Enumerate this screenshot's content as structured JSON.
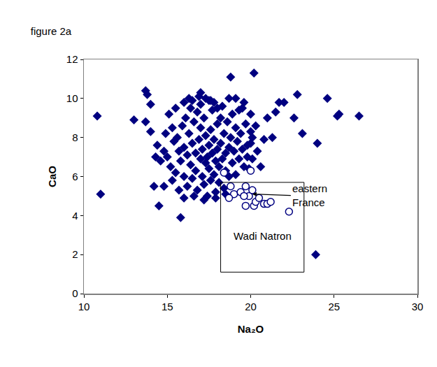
{
  "chart_data": {
    "type": "scatter",
    "title": "figure 2a",
    "x_label": "Na₂O",
    "y_label": "CaO",
    "xlim": [
      10,
      30
    ],
    "xticks": [
      10,
      15,
      20,
      25,
      30
    ],
    "ylim": [
      0,
      12
    ],
    "yticks": [
      0,
      2,
      4,
      6,
      8,
      10,
      12
    ],
    "grid": false,
    "series": [
      {
        "color": "#000080",
        "marker": "diamond",
        "x": [
          10.8,
          11.0,
          13.0,
          13.7,
          13.8,
          14.0,
          13.7,
          14.0,
          14.3,
          14.2,
          14.5,
          14.8,
          15.8,
          15.5,
          15.3,
          16.0,
          16.5,
          17.0,
          17.3,
          17.5,
          17.8,
          18.0,
          18.8,
          19.1,
          20.2,
          20.0,
          19.5,
          20.0,
          19.8,
          21.5,
          21.7,
          22.8,
          22.6,
          23.1,
          24.0,
          24.6,
          25.2,
          25.3,
          26.5,
          23.9,
          22.0,
          15.0,
          15.2,
          15.4,
          15.5,
          15.6,
          15.7,
          15.8,
          15.9,
          16.0,
          16.0,
          16.1,
          16.2,
          16.2,
          16.3,
          16.4,
          16.5,
          16.5,
          16.6,
          16.7,
          16.7,
          16.8,
          16.8,
          16.9,
          17.0,
          17.0,
          17.1,
          17.1,
          17.2,
          17.2,
          17.3,
          17.3,
          17.4,
          17.4,
          17.5,
          17.5,
          17.6,
          17.6,
          17.7,
          17.7,
          17.8,
          17.8,
          17.9,
          17.9,
          18.0,
          18.0,
          18.1,
          18.1,
          18.2,
          18.2,
          18.3,
          18.4,
          18.4,
          18.5,
          18.5,
          18.6,
          18.7,
          18.7,
          18.8,
          18.9,
          18.9,
          19.0,
          19.1,
          19.1,
          19.2,
          19.3,
          19.4,
          19.5,
          19.6,
          19.7,
          19.8,
          19.9,
          20.0,
          20.1,
          20.1,
          15.3,
          14.8,
          14.6,
          14.9,
          15.1,
          14.4,
          16.3,
          16.9,
          17.6,
          18.3,
          19.3,
          20.4,
          20.8,
          21.0,
          16.0,
          16.6,
          17.2,
          17.9,
          18.5,
          15.7,
          16.4,
          17.0,
          19.6,
          18.7,
          20.3,
          21.3,
          20.6
        ],
        "y": [
          9.1,
          5.1,
          8.9,
          10.4,
          10.2,
          9.7,
          8.8,
          8.3,
          7.0,
          5.5,
          4.5,
          5.5,
          3.9,
          9.5,
          8.5,
          9.8,
          9.9,
          10.3,
          10.0,
          9.9,
          9.8,
          9.5,
          11.1,
          10.0,
          11.3,
          9.2,
          9.5,
          8.3,
          7.6,
          9.3,
          9.8,
          10.2,
          9.0,
          8.2,
          7.7,
          10.0,
          9.1,
          9.2,
          9.1,
          2.0,
          9.8,
          7.0,
          6.5,
          7.8,
          6.2,
          8.0,
          7.3,
          6.8,
          8.6,
          7.5,
          6.0,
          9.0,
          7.1,
          5.5,
          8.2,
          6.6,
          7.7,
          5.9,
          8.8,
          7.2,
          6.3,
          9.3,
          5.3,
          7.9,
          6.9,
          8.5,
          6.0,
          7.4,
          9.0,
          5.6,
          6.7,
          8.1,
          7.0,
          5.0,
          7.6,
          6.4,
          8.4,
          5.8,
          7.2,
          9.4,
          6.1,
          7.9,
          6.8,
          5.2,
          7.4,
          8.7,
          6.5,
          5.7,
          7.7,
          9.0,
          6.9,
          8.2,
          5.4,
          7.2,
          6.3,
          8.8,
          7.5,
          6.0,
          8.0,
          6.7,
          9.2,
          7.3,
          8.5,
          6.1,
          7.8,
          6.9,
          8.2,
          7.4,
          6.5,
          8.7,
          7.0,
          6.4,
          7.7,
          8.0,
          6.9,
          5.8,
          7.3,
          6.8,
          8.2,
          9.2,
          7.6,
          10.0,
          10.1,
          9.9,
          9.6,
          9.4,
          7.3,
          7.9,
          9.0,
          4.9,
          5.0,
          4.8,
          4.9,
          5.1,
          5.3,
          9.5,
          9.7,
          9.8,
          10.0,
          8.6,
          8.0,
          6.5
        ]
      },
      {
        "color": "#000080",
        "marker": "circle-open",
        "x": [
          18.4,
          20.0,
          18.8,
          19.0,
          19.4,
          19.7,
          19.9,
          20.1,
          19.7,
          20.2,
          20.3,
          20.5,
          20.8,
          21.0,
          21.2,
          22.3,
          18.7,
          19.6
        ],
        "y": [
          6.2,
          6.3,
          5.5,
          5.1,
          5.2,
          5.5,
          5.0,
          5.3,
          4.5,
          4.5,
          4.7,
          4.9,
          4.6,
          4.6,
          4.7,
          4.2,
          4.9,
          5.0
        ]
      }
    ],
    "regions": [
      {
        "label": "Wadi Natron",
        "x": [
          18.2,
          23.2
        ],
        "y": [
          1.1,
          5.7
        ]
      }
    ],
    "annotations": [
      {
        "text": "eastern France",
        "x": 20.1,
        "y": 5.1
      }
    ]
  }
}
